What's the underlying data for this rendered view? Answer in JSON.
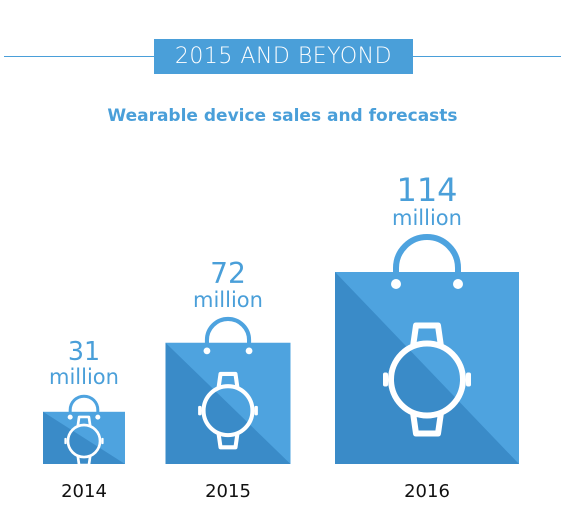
{
  "header": {
    "banner": "2015 AND BEYOND",
    "subtitle": "Wearable device sales and forecasts"
  },
  "colors": {
    "accent": "#4a9fd9",
    "bag_light": "#4ea3df",
    "bag_dark": "#3a8bc8",
    "text": "#111111",
    "white": "#ffffff"
  },
  "chart_data": {
    "type": "bar",
    "title": "Wearable device sales and forecasts",
    "categories": [
      "2014",
      "2015",
      "2016"
    ],
    "values": [
      31,
      72,
      114
    ],
    "value_labels": [
      "31",
      "72",
      "114"
    ],
    "unit_label": "million",
    "ylabel": "",
    "xlabel": ""
  }
}
